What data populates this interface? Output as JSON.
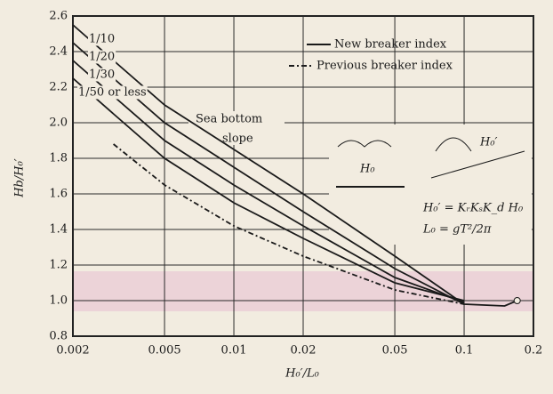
{
  "chart_data": {
    "type": "line",
    "x_label": "H₀′/L₀",
    "y_label": "Hb/H₀′",
    "x": [
      0.002,
      0.003,
      0.005,
      0.01,
      0.02,
      0.05,
      0.1,
      0.15,
      0.17
    ],
    "series": [
      {
        "name": "1/10",
        "color": "#1a1a1a",
        "dashed": false,
        "values": [
          2.55,
          2.35,
          2.1,
          1.85,
          1.6,
          1.25,
          0.98,
          0.97,
          1.0
        ]
      },
      {
        "name": "1/20",
        "color": "#1a1a1a",
        "dashed": false,
        "values": [
          2.45,
          2.25,
          2.0,
          1.75,
          1.5,
          1.18,
          0.98,
          null,
          null
        ]
      },
      {
        "name": "1/30",
        "color": "#1a1a1a",
        "dashed": false,
        "values": [
          2.35,
          2.15,
          1.9,
          1.65,
          1.42,
          1.13,
          0.99,
          null,
          null
        ]
      },
      {
        "name": "1/50 or less",
        "color": "#1a1a1a",
        "dashed": false,
        "values": [
          2.25,
          2.05,
          1.8,
          1.55,
          1.35,
          1.1,
          1.0,
          null,
          null
        ]
      },
      {
        "name": "Previous breaker index",
        "color": "#1a1a1a",
        "dashed": true,
        "values": [
          null,
          1.88,
          1.65,
          1.42,
          1.25,
          1.06,
          0.98,
          null,
          null
        ]
      }
    ],
    "annotations": [
      "New breaker index",
      "Sea bottom",
      "slope",
      "H₀′ = KᵣKₛK_d H₀",
      "L₀ = gT²/2π",
      "H₀",
      "H₀′"
    ],
    "xlim": [
      0.002,
      0.2
    ],
    "xlog": true,
    "xticks": [
      0.002,
      0.005,
      0.01,
      0.02,
      0.05,
      0.1,
      0.2
    ],
    "ylim": [
      0.8,
      2.6
    ],
    "yticks": [
      0.8,
      {
        "value": 1,
        "label": "1.0"
      },
      1.2,
      1.4,
      1.6,
      1.8,
      {
        "value": 2,
        "label": "2.0"
      },
      2.2,
      2.4,
      2.6
    ],
    "grid": true
  }
}
